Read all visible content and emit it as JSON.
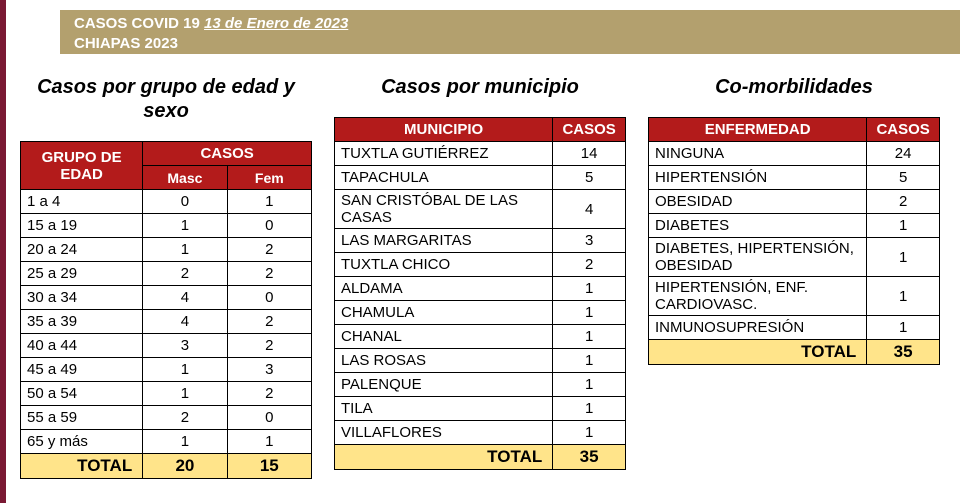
{
  "header": {
    "title_prefix": "CASOS COVID 19 ",
    "date": "13 de Enero de 2023",
    "subtitle": "CHIAPAS 2023"
  },
  "colors": {
    "header_bg": "#b3a06e",
    "table_header_bg": "#b31b1b",
    "total_bg": "#ffe48a",
    "stripe": "#7a1933"
  },
  "age_sex": {
    "title": "Casos por grupo de edad y sexo",
    "columns": {
      "group": "GRUPO DE EDAD",
      "cases": "CASOS",
      "masc": "Masc",
      "fem": "Fem"
    },
    "rows": [
      {
        "group": "1 a 4",
        "masc": 0,
        "fem": 1
      },
      {
        "group": "15 a 19",
        "masc": 1,
        "fem": 0
      },
      {
        "group": "20 a 24",
        "masc": 1,
        "fem": 2
      },
      {
        "group": "25 a 29",
        "masc": 2,
        "fem": 2
      },
      {
        "group": "30 a 34",
        "masc": 4,
        "fem": 0
      },
      {
        "group": "35 a 39",
        "masc": 4,
        "fem": 2
      },
      {
        "group": "40 a 44",
        "masc": 3,
        "fem": 2
      },
      {
        "group": "45 a 49",
        "masc": 1,
        "fem": 3
      },
      {
        "group": "50 a 54",
        "masc": 1,
        "fem": 2
      },
      {
        "group": "55 a 59",
        "masc": 2,
        "fem": 0
      },
      {
        "group": "65 y más",
        "masc": 1,
        "fem": 1
      }
    ],
    "total_label": "TOTAL",
    "total_masc": 20,
    "total_fem": 15
  },
  "municipio": {
    "title": "Casos por municipio",
    "columns": {
      "mun": "MUNICIPIO",
      "cases": "CASOS"
    },
    "rows": [
      {
        "name": "TUXTLA GUTIÉRREZ",
        "cases": 14
      },
      {
        "name": "TAPACHULA",
        "cases": 5
      },
      {
        "name": "SAN CRISTÓBAL DE LAS CASAS",
        "cases": 4
      },
      {
        "name": "LAS MARGARITAS",
        "cases": 3
      },
      {
        "name": "TUXTLA CHICO",
        "cases": 2
      },
      {
        "name": "ALDAMA",
        "cases": 1
      },
      {
        "name": "CHAMULA",
        "cases": 1
      },
      {
        "name": "CHANAL",
        "cases": 1
      },
      {
        "name": "LAS ROSAS",
        "cases": 1
      },
      {
        "name": "PALENQUE",
        "cases": 1
      },
      {
        "name": "TILA",
        "cases": 1
      },
      {
        "name": "VILLAFLORES",
        "cases": 1
      }
    ],
    "total_label": "TOTAL",
    "total": 35
  },
  "comorb": {
    "title": "Co-morbilidades",
    "columns": {
      "disease": "ENFERMEDAD",
      "cases": "CASOS"
    },
    "rows": [
      {
        "name": "NINGUNA",
        "cases": 24
      },
      {
        "name": "HIPERTENSIÓN",
        "cases": 5
      },
      {
        "name": "OBESIDAD",
        "cases": 2
      },
      {
        "name": "DIABETES",
        "cases": 1
      },
      {
        "name": "DIABETES, HIPERTENSIÓN, OBESIDAD",
        "cases": 1
      },
      {
        "name": "HIPERTENSIÓN, ENF. CARDIOVASC.",
        "cases": 1
      },
      {
        "name": "INMUNOSUPRESIÓN",
        "cases": 1
      }
    ],
    "total_label": "TOTAL",
    "total": 35
  }
}
